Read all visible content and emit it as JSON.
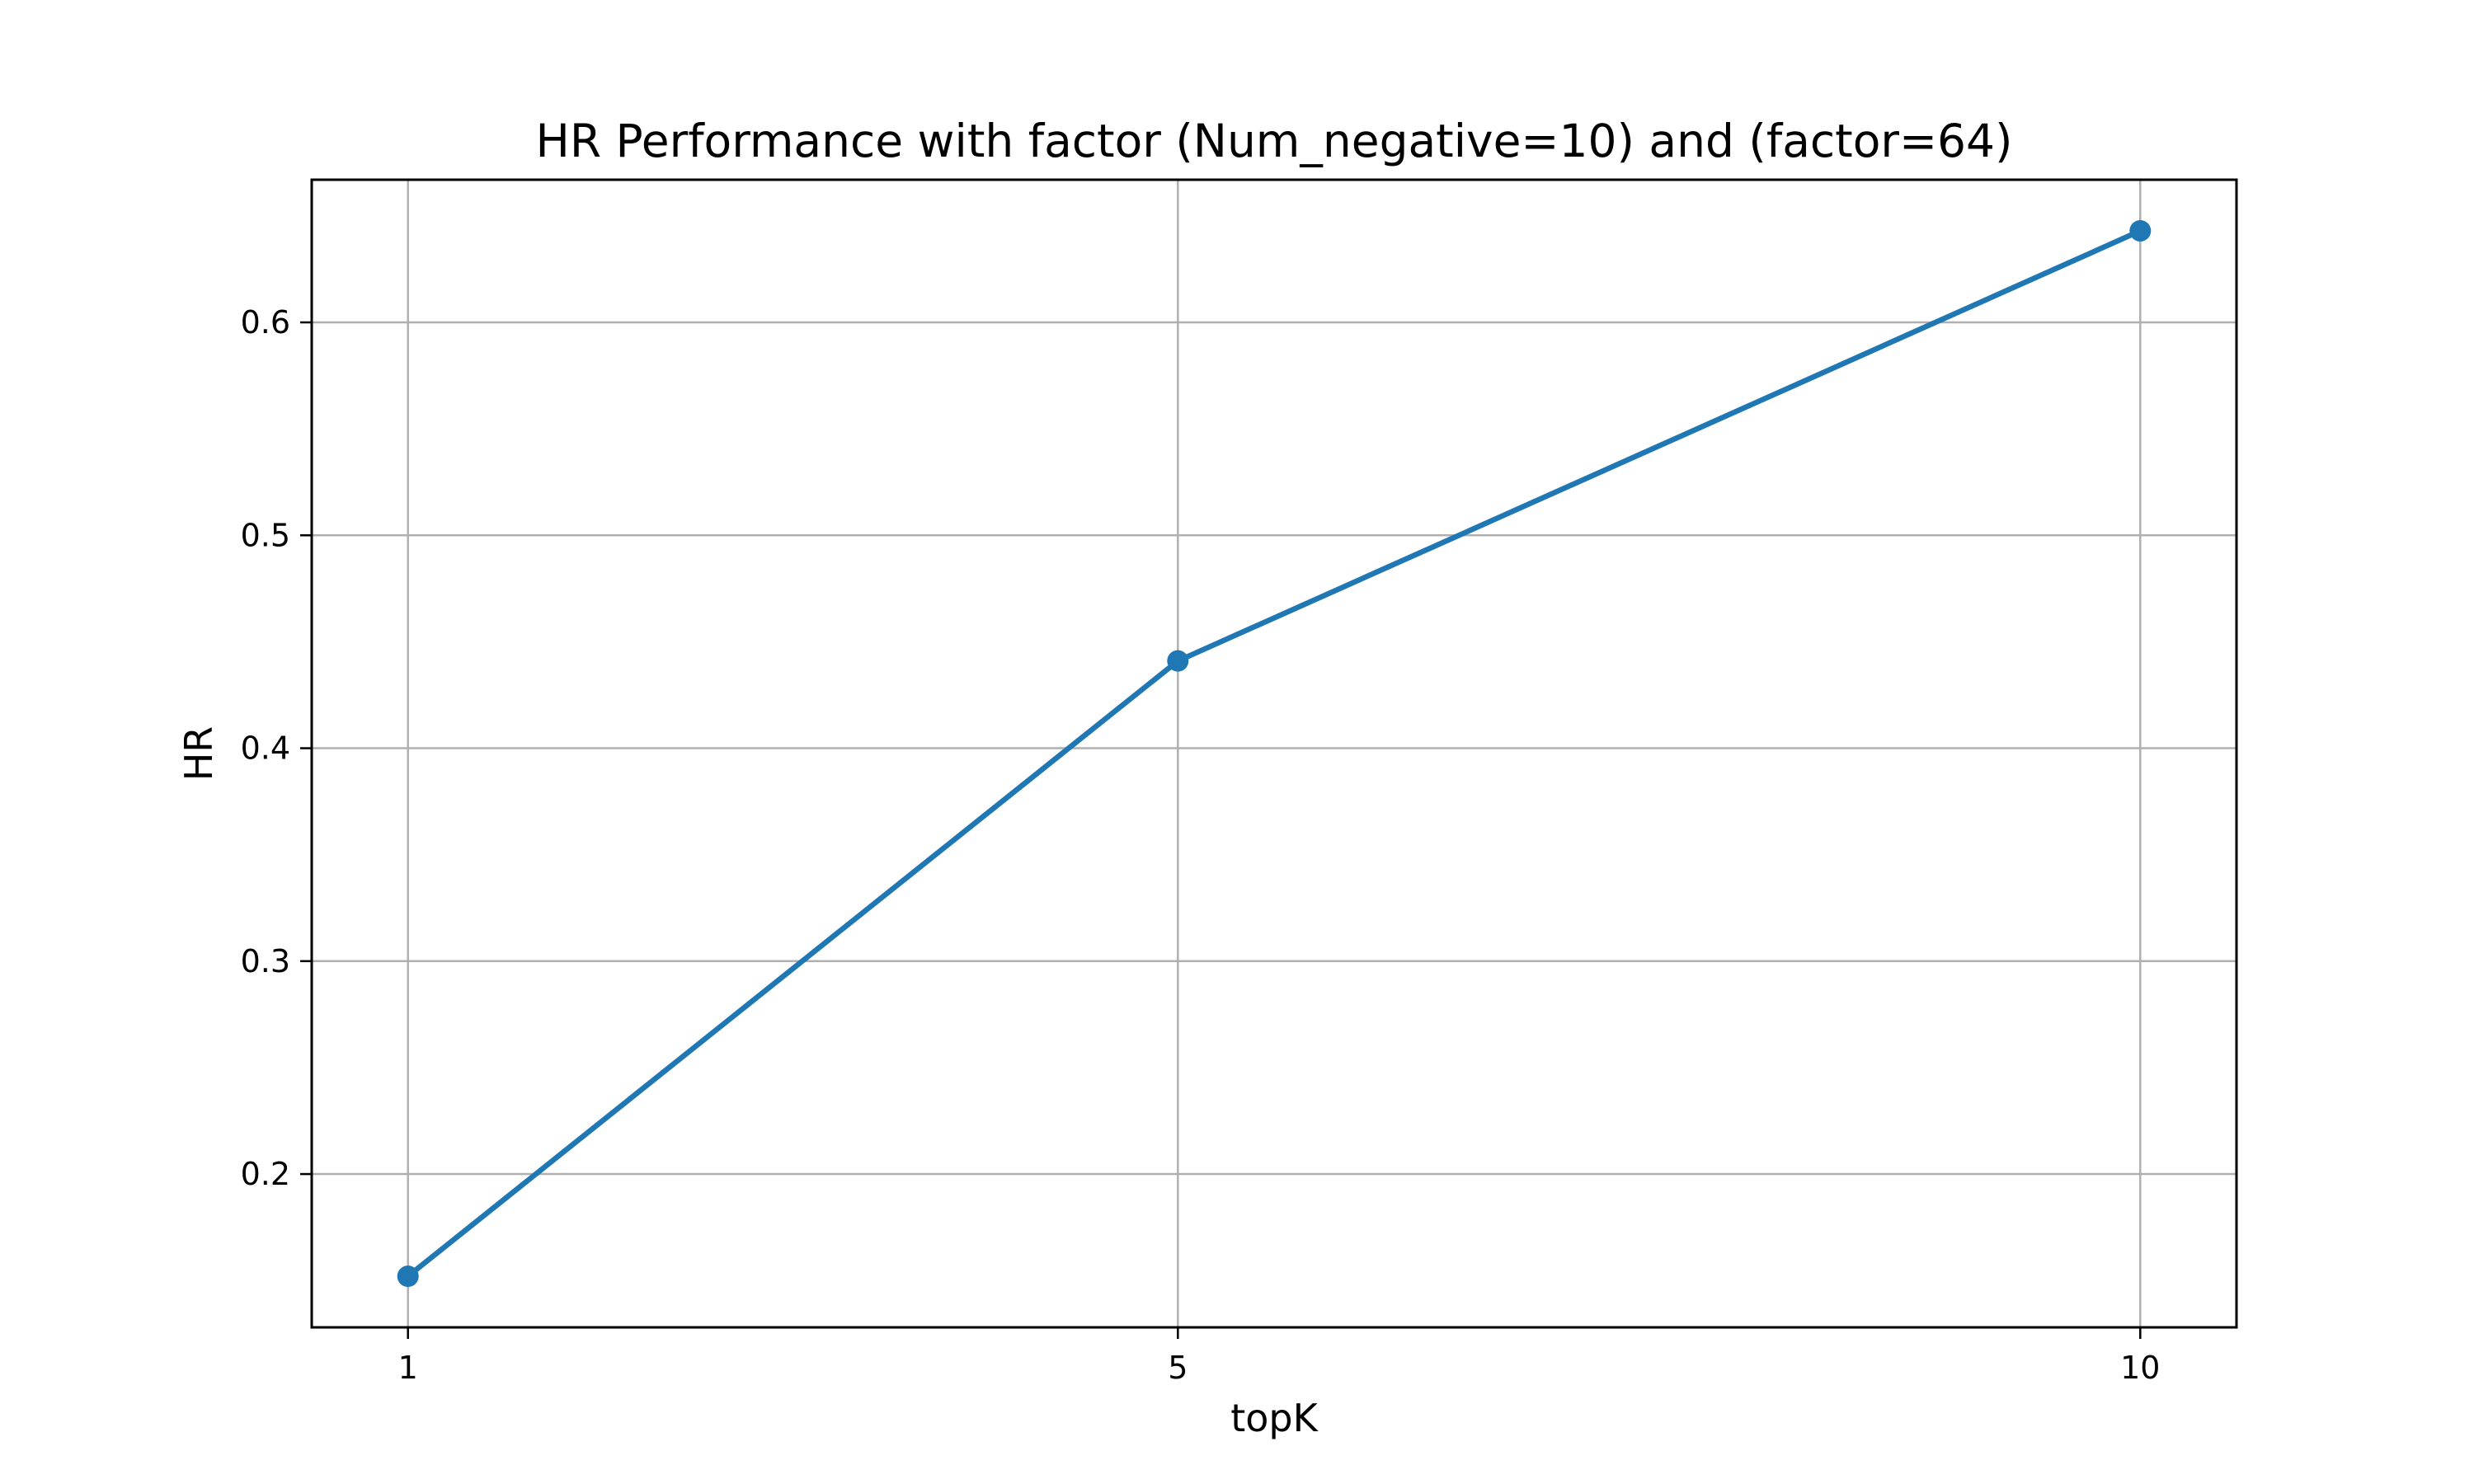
{
  "chart_data": {
    "type": "line",
    "title": "HR Performance with factor (Num_negative=10) and (factor=64)",
    "xlabel": "topK",
    "ylabel": "HR",
    "x": [
      1,
      5,
      10
    ],
    "x_tick_labels": [
      "1",
      "5",
      "10"
    ],
    "xlim": [
      0.5,
      10.5
    ],
    "ylim": [
      0.128,
      0.667
    ],
    "y_ticks": [
      0.2,
      0.3,
      0.4,
      0.5,
      0.6
    ],
    "y_tick_labels": [
      "0.2",
      "0.3",
      "0.4",
      "0.5",
      "0.6"
    ],
    "grid": true,
    "markers": true,
    "series": [
      {
        "values": [
          0.152,
          0.441,
          0.643
        ],
        "color": "#1f77b4"
      }
    ]
  }
}
